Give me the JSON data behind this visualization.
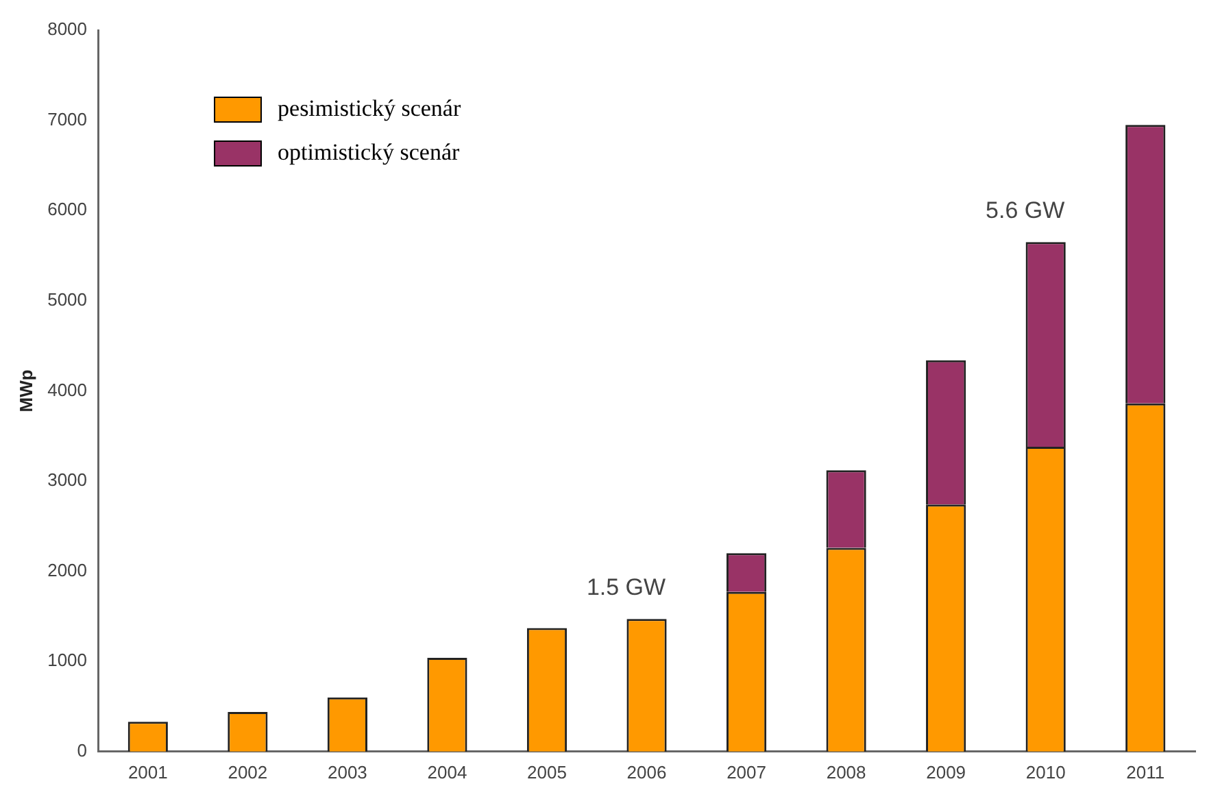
{
  "chart_data": {
    "type": "bar",
    "ylabel": "MWp",
    "categories": [
      "2001",
      "2002",
      "2003",
      "2004",
      "2005",
      "2006",
      "2007",
      "2008",
      "2009",
      "2010",
      "2011"
    ],
    "stacked": true,
    "ylim": [
      0,
      8000
    ],
    "yticks": [
      0,
      1000,
      2000,
      3000,
      4000,
      5000,
      6000,
      7000,
      8000
    ],
    "legend": "top left",
    "grid": false,
    "series": [
      {
        "name": "pesimistický scenár",
        "color": "#ff9900",
        "values": [
          330,
          440,
          600,
          1040,
          1370,
          1470,
          1770,
          2260,
          2740,
          3380,
          3860
        ]
      },
      {
        "name": "optimistický scenár",
        "color": "#993366",
        "values": [
          null,
          null,
          null,
          null,
          null,
          null,
          430,
          860,
          1600,
          2270,
          3090
        ]
      }
    ],
    "annotations": [
      {
        "text": "1.5 GW",
        "x": "2006",
        "y": 1470
      },
      {
        "text": "5.6 GW",
        "x": "2010",
        "y": 5650
      }
    ]
  }
}
